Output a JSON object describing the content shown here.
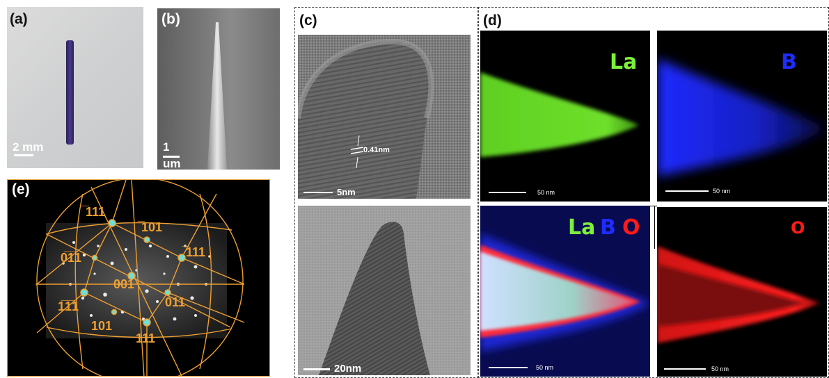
{
  "panels": {
    "a": {
      "label": "(a)",
      "scale": "2 mm"
    },
    "b": {
      "label": "(b)",
      "scale_line1": "1",
      "scale_line2": "um"
    },
    "c": {
      "label": "(c)",
      "spacing": "0.41nm",
      "scale_top": "5nm",
      "scale_bottom": "20nm"
    },
    "d": {
      "label": "(d)",
      "scale_green": "50 nm",
      "scale_blue": "50 nm",
      "scale_merge": "50 nm",
      "scale_red": "50 nm",
      "elem_la": "La",
      "elem_b": "B",
      "elem_o": "O",
      "merge_la": "La",
      "merge_b": "B",
      "merge_o": "O"
    },
    "e": {
      "label": "(e)",
      "indices": {
        "i111b": "̅111",
        "i101b": "̅101",
        "i011b": "0̅1̅1",
        "i111c": "̅111",
        "i001": "001",
        "i111d": "1̅1̅1",
        "i011": "011",
        "i101": "101",
        "i111": "111"
      }
    }
  },
  "colors": {
    "green": "#7cf03a",
    "blue": "#1e2cff",
    "red": "#ff1a1a",
    "orange": "#f0a030"
  }
}
